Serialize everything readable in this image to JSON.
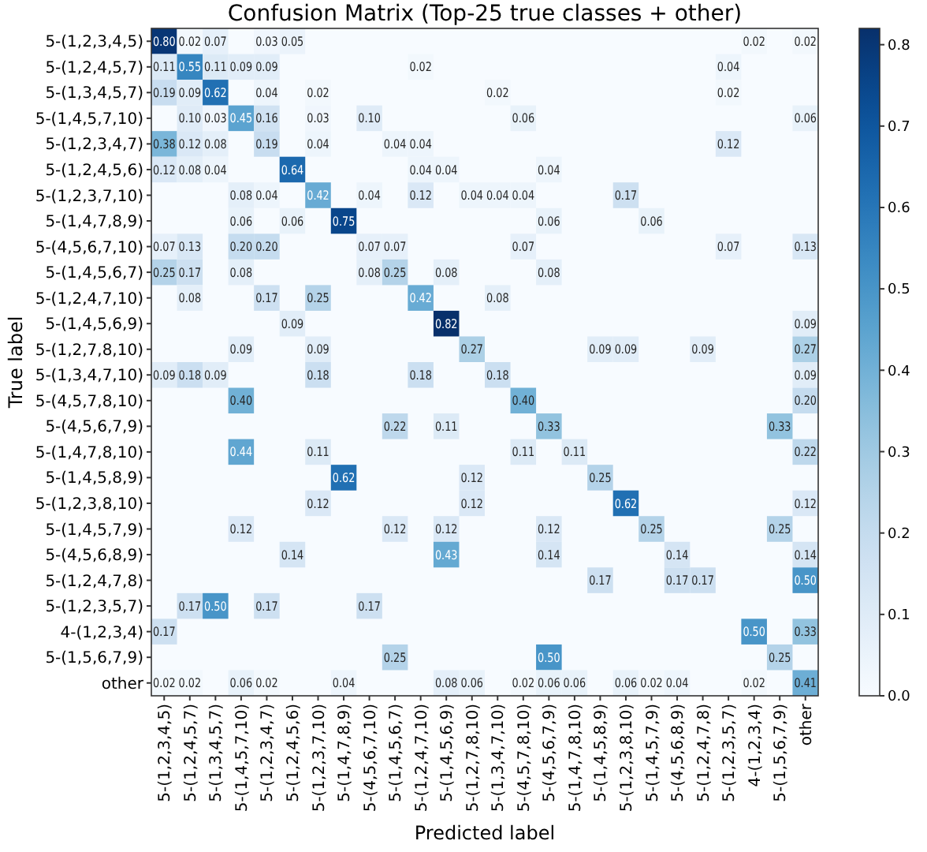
{
  "chart_data": {
    "type": "heatmap",
    "title": "Confusion Matrix (Top-25 true classes + other)",
    "xlabel": "Predicted label",
    "ylabel": "True label",
    "categories": [
      "5-(1,2,3,4,5)",
      "5-(1,2,4,5,7)",
      "5-(1,3,4,5,7)",
      "5-(1,4,5,7,10)",
      "5-(1,2,3,4,7)",
      "5-(1,2,4,5,6)",
      "5-(1,2,3,7,10)",
      "5-(1,4,7,8,9)",
      "5-(4,5,6,7,10)",
      "5-(1,4,5,6,7)",
      "5-(1,2,4,7,10)",
      "5-(1,4,5,6,9)",
      "5-(1,2,7,8,10)",
      "5-(1,3,4,7,10)",
      "5-(4,5,7,8,10)",
      "5-(4,5,6,7,9)",
      "5-(1,4,7,8,10)",
      "5-(1,4,5,8,9)",
      "5-(1,2,3,8,10)",
      "5-(1,4,5,7,9)",
      "5-(4,5,6,8,9)",
      "5-(1,2,4,7,8)",
      "5-(1,2,3,5,7)",
      "4-(1,2,3,4)",
      "5-(1,5,6,7,9)",
      "other"
    ],
    "y_categories": [
      "5-(1,2,3,4,5)",
      "5-(1,2,4,5,7)",
      "5-(1,3,4,5,7)",
      "5-(1,4,5,7,10)",
      "5-(1,2,3,4,7)",
      "5-(1,2,4,5,6)",
      "5-(1,2,3,7,10)",
      "5-(1,4,7,8,9)",
      "5-(4,5,6,7,10)",
      "5-(1,4,5,6,7)",
      "5-(1,2,4,7,10)",
      "5-(1,4,5,6,9)",
      "5-(1,2,7,8,10)",
      "5-(1,3,4,7,10)",
      "5-(4,5,7,8,10)",
      "5-(4,5,6,7,9)",
      "5-(1,4,7,8,10)",
      "5-(1,4,5,8,9)",
      "5-(1,2,3,8,10)",
      "5-(1,4,5,7,9)",
      "5-(4,5,6,8,9)",
      "5-(1,2,4,7,8)",
      "5-(1,2,3,5,7)",
      "4-(1,2,3,4)",
      "5-(1,5,6,7,9)",
      "other"
    ],
    "cells": [
      [
        0.8,
        0.02,
        0.07,
        null,
        0.03,
        0.05,
        null,
        null,
        null,
        null,
        null,
        null,
        null,
        null,
        null,
        null,
        null,
        null,
        null,
        null,
        null,
        null,
        null,
        0.02,
        null,
        0.02
      ],
      [
        0.11,
        0.55,
        0.11,
        0.09,
        0.09,
        null,
        null,
        null,
        null,
        null,
        0.02,
        null,
        null,
        null,
        null,
        null,
        null,
        null,
        null,
        null,
        null,
        null,
        0.04,
        null,
        null,
        null
      ],
      [
        0.19,
        0.09,
        0.62,
        null,
        0.04,
        null,
        0.02,
        null,
        null,
        null,
        null,
        null,
        null,
        0.02,
        null,
        null,
        null,
        null,
        null,
        null,
        null,
        null,
        0.02,
        null,
        null,
        null
      ],
      [
        null,
        0.1,
        0.03,
        0.45,
        0.16,
        null,
        0.03,
        null,
        0.1,
        null,
        null,
        null,
        null,
        null,
        0.06,
        null,
        null,
        null,
        null,
        null,
        null,
        null,
        null,
        null,
        null,
        0.06
      ],
      [
        0.38,
        0.12,
        0.08,
        null,
        0.19,
        null,
        0.04,
        null,
        null,
        0.04,
        0.04,
        null,
        null,
        null,
        null,
        null,
        null,
        null,
        null,
        null,
        null,
        null,
        0.12,
        null,
        null,
        null
      ],
      [
        0.12,
        0.08,
        0.04,
        null,
        null,
        0.64,
        null,
        null,
        null,
        null,
        0.04,
        0.04,
        null,
        null,
        null,
        0.04,
        null,
        null,
        null,
        null,
        null,
        null,
        null,
        null,
        null,
        null
      ],
      [
        null,
        null,
        null,
        0.08,
        0.04,
        null,
        0.42,
        null,
        0.04,
        null,
        0.12,
        null,
        0.04,
        0.04,
        0.04,
        null,
        null,
        null,
        0.17,
        null,
        null,
        null,
        null,
        null,
        null,
        null
      ],
      [
        null,
        null,
        null,
        0.06,
        null,
        0.06,
        null,
        0.75,
        null,
        null,
        null,
        null,
        null,
        null,
        null,
        0.06,
        null,
        null,
        null,
        0.06,
        null,
        null,
        null,
        null,
        null,
        null
      ],
      [
        0.07,
        0.13,
        null,
        0.2,
        0.2,
        null,
        null,
        null,
        0.07,
        0.07,
        null,
        null,
        null,
        null,
        0.07,
        null,
        null,
        null,
        null,
        null,
        null,
        null,
        0.07,
        null,
        null,
        0.13
      ],
      [
        0.25,
        0.17,
        null,
        0.08,
        null,
        null,
        null,
        null,
        0.08,
        0.25,
        null,
        0.08,
        null,
        null,
        null,
        0.08,
        null,
        null,
        null,
        null,
        null,
        null,
        null,
        null,
        null,
        null
      ],
      [
        null,
        0.08,
        null,
        null,
        0.17,
        null,
        0.25,
        null,
        null,
        null,
        0.42,
        null,
        null,
        0.08,
        null,
        null,
        null,
        null,
        null,
        null,
        null,
        null,
        null,
        null,
        null,
        null
      ],
      [
        null,
        null,
        null,
        null,
        null,
        0.09,
        null,
        null,
        null,
        null,
        null,
        0.82,
        null,
        null,
        null,
        null,
        null,
        null,
        null,
        null,
        null,
        null,
        null,
        null,
        null,
        0.09
      ],
      [
        null,
        null,
        null,
        0.09,
        null,
        null,
        0.09,
        null,
        null,
        null,
        null,
        null,
        0.27,
        null,
        null,
        null,
        null,
        0.09,
        0.09,
        null,
        null,
        0.09,
        null,
        null,
        null,
        0.27
      ],
      [
        0.09,
        0.18,
        0.09,
        null,
        null,
        null,
        0.18,
        null,
        null,
        null,
        0.18,
        null,
        null,
        0.18,
        null,
        null,
        null,
        null,
        null,
        null,
        null,
        null,
        null,
        null,
        null,
        0.09
      ],
      [
        null,
        null,
        null,
        0.4,
        null,
        null,
        null,
        null,
        null,
        null,
        null,
        null,
        null,
        null,
        0.4,
        null,
        null,
        null,
        null,
        null,
        null,
        null,
        null,
        null,
        null,
        0.2
      ],
      [
        null,
        null,
        null,
        null,
        null,
        null,
        null,
        null,
        null,
        0.22,
        null,
        0.11,
        null,
        null,
        null,
        0.33,
        null,
        null,
        null,
        null,
        null,
        null,
        null,
        null,
        0.33,
        null
      ],
      [
        null,
        null,
        null,
        0.44,
        null,
        null,
        0.11,
        null,
        null,
        null,
        null,
        null,
        null,
        null,
        0.11,
        null,
        0.11,
        null,
        null,
        null,
        null,
        null,
        null,
        null,
        null,
        0.22
      ],
      [
        null,
        null,
        null,
        null,
        null,
        null,
        null,
        0.62,
        null,
        null,
        null,
        null,
        0.12,
        null,
        null,
        null,
        null,
        0.25,
        null,
        null,
        null,
        null,
        null,
        null,
        null,
        null
      ],
      [
        null,
        null,
        null,
        null,
        null,
        null,
        0.12,
        null,
        null,
        null,
        null,
        null,
        0.12,
        null,
        null,
        null,
        null,
        null,
        0.62,
        null,
        null,
        null,
        null,
        null,
        null,
        0.12
      ],
      [
        null,
        null,
        null,
        0.12,
        null,
        null,
        null,
        null,
        null,
        0.12,
        null,
        0.12,
        null,
        null,
        null,
        0.12,
        null,
        null,
        null,
        0.25,
        null,
        null,
        null,
        null,
        0.25,
        null
      ],
      [
        null,
        null,
        null,
        null,
        null,
        0.14,
        null,
        null,
        null,
        null,
        null,
        0.43,
        null,
        null,
        null,
        0.14,
        null,
        null,
        null,
        null,
        0.14,
        null,
        null,
        null,
        null,
        0.14
      ],
      [
        null,
        null,
        null,
        null,
        null,
        null,
        null,
        null,
        null,
        null,
        null,
        null,
        null,
        null,
        null,
        null,
        null,
        0.17,
        null,
        null,
        0.17,
        0.17,
        null,
        null,
        null,
        0.5
      ],
      [
        null,
        0.17,
        0.5,
        null,
        0.17,
        null,
        null,
        null,
        0.17,
        null,
        null,
        null,
        null,
        null,
        null,
        null,
        null,
        null,
        null,
        null,
        null,
        null,
        null,
        null,
        null,
        null
      ],
      [
        0.17,
        null,
        null,
        null,
        null,
        null,
        null,
        null,
        null,
        null,
        null,
        null,
        null,
        null,
        null,
        null,
        null,
        null,
        null,
        null,
        null,
        null,
        null,
        0.5,
        null,
        0.33
      ],
      [
        null,
        null,
        null,
        null,
        null,
        null,
        null,
        null,
        null,
        0.25,
        null,
        null,
        null,
        null,
        null,
        0.5,
        null,
        null,
        null,
        null,
        null,
        null,
        null,
        null,
        0.25,
        null
      ],
      [
        0.02,
        0.02,
        null,
        0.06,
        0.02,
        null,
        null,
        0.04,
        null,
        null,
        null,
        0.08,
        0.06,
        null,
        0.02,
        0.06,
        0.06,
        null,
        0.06,
        0.02,
        0.04,
        null,
        null,
        0.02,
        null,
        0.41
      ]
    ],
    "cell_labels": [
      [
        "0.80",
        "0.02",
        "0.07",
        null,
        "0.03",
        "0.05",
        null,
        null,
        null,
        null,
        null,
        null,
        null,
        null,
        null,
        null,
        null,
        null,
        null,
        null,
        null,
        null,
        null,
        "0.02",
        null,
        "0.02"
      ],
      [
        "0.11",
        "0.55",
        "0.11",
        "0.09",
        "0.09",
        null,
        null,
        null,
        null,
        null,
        "0.02",
        null,
        null,
        null,
        null,
        null,
        null,
        null,
        null,
        null,
        null,
        null,
        "0.04",
        null,
        null,
        null
      ],
      [
        "0.19",
        "0.09",
        "0.62",
        null,
        "0.04",
        null,
        "0.02",
        null,
        null,
        null,
        null,
        null,
        null,
        "0.02",
        null,
        null,
        null,
        null,
        null,
        null,
        null,
        null,
        "0.02",
        null,
        null,
        null
      ],
      [
        null,
        "0.10",
        "0.03",
        "0.45",
        "0.16",
        null,
        "0.03",
        null,
        "0.10",
        null,
        null,
        null,
        null,
        null,
        "0.06",
        null,
        null,
        null,
        null,
        null,
        null,
        null,
        null,
        null,
        null,
        "0.06"
      ],
      [
        "0.38",
        "0.12",
        "0.08",
        null,
        "0.19",
        null,
        "0.04",
        null,
        null,
        "0.04",
        "0.04",
        null,
        null,
        null,
        null,
        null,
        null,
        null,
        null,
        null,
        null,
        null,
        "0.12",
        null,
        null,
        null
      ],
      [
        "0.12",
        "0.08",
        "0.04",
        null,
        null,
        "0.64",
        null,
        null,
        null,
        null,
        "0.04",
        "0.04",
        null,
        null,
        null,
        "0.04",
        null,
        null,
        null,
        null,
        null,
        null,
        null,
        null,
        null,
        null
      ],
      [
        null,
        null,
        null,
        "0.08",
        "0.04",
        null,
        "0.42",
        null,
        "0.04",
        null,
        "0.12",
        null,
        "0.04",
        "0.04",
        "0.04",
        null,
        null,
        null,
        "0.17",
        null,
        null,
        null,
        null,
        null,
        null,
        null
      ],
      [
        null,
        null,
        null,
        "0.06",
        null,
        "0.06",
        null,
        "0.75",
        null,
        null,
        null,
        null,
        null,
        null,
        null,
        "0.06",
        null,
        null,
        null,
        "0.06",
        null,
        null,
        null,
        null,
        null,
        null
      ],
      [
        "0.07",
        "0.13",
        null,
        "0.20",
        "0.20",
        null,
        null,
        null,
        "0.07",
        "0.07",
        null,
        null,
        null,
        null,
        "0.07",
        null,
        null,
        null,
        null,
        null,
        null,
        null,
        "0.07",
        null,
        null,
        "0.13"
      ],
      [
        "0.25",
        "0.17",
        null,
        "0.08",
        null,
        null,
        null,
        null,
        "0.08",
        "0.25",
        null,
        "0.08",
        null,
        null,
        null,
        "0.08",
        null,
        null,
        null,
        null,
        null,
        null,
        null,
        null,
        null,
        null
      ],
      [
        null,
        "0.08",
        null,
        null,
        "0.17",
        null,
        "0.25",
        null,
        null,
        null,
        "0.42",
        null,
        null,
        "0.08",
        null,
        null,
        null,
        null,
        null,
        null,
        null,
        null,
        null,
        null,
        null,
        null
      ],
      [
        null,
        null,
        null,
        null,
        null,
        "0.09",
        null,
        null,
        null,
        null,
        null,
        "0.82",
        null,
        null,
        null,
        null,
        null,
        null,
        null,
        null,
        null,
        null,
        null,
        null,
        null,
        "0.09"
      ],
      [
        null,
        null,
        null,
        "0.09",
        null,
        null,
        "0.09",
        null,
        null,
        null,
        null,
        null,
        "0.27",
        null,
        null,
        null,
        null,
        "0.09",
        "0.09",
        null,
        null,
        "0.09",
        null,
        null,
        null,
        "0.27"
      ],
      [
        "0.09",
        "0.18",
        "0.09",
        null,
        null,
        null,
        "0.18",
        null,
        null,
        null,
        "0.18",
        null,
        null,
        "0.18",
        null,
        null,
        null,
        null,
        null,
        null,
        null,
        null,
        null,
        null,
        null,
        "0.09"
      ],
      [
        null,
        null,
        null,
        "0.40",
        null,
        null,
        null,
        null,
        null,
        null,
        null,
        null,
        null,
        null,
        "0.40",
        null,
        null,
        null,
        null,
        null,
        null,
        null,
        null,
        null,
        null,
        "0.20"
      ],
      [
        null,
        null,
        null,
        null,
        null,
        null,
        null,
        null,
        null,
        "0.22",
        null,
        "0.11",
        null,
        null,
        null,
        "0.33",
        null,
        null,
        null,
        null,
        null,
        null,
        null,
        null,
        "0.33",
        null
      ],
      [
        null,
        null,
        null,
        "0.44",
        null,
        null,
        "0.11",
        null,
        null,
        null,
        null,
        null,
        null,
        null,
        "0.11",
        null,
        "0.11",
        null,
        null,
        null,
        null,
        null,
        null,
        null,
        null,
        "0.22"
      ],
      [
        null,
        null,
        null,
        null,
        null,
        null,
        null,
        "0.62",
        null,
        null,
        null,
        null,
        "0.12",
        null,
        null,
        null,
        null,
        "0.25",
        null,
        null,
        null,
        null,
        null,
        null,
        null,
        null
      ],
      [
        null,
        null,
        null,
        null,
        null,
        null,
        "0.12",
        null,
        null,
        null,
        null,
        null,
        "0.12",
        null,
        null,
        null,
        null,
        null,
        "0.62",
        null,
        null,
        null,
        null,
        null,
        null,
        "0.12"
      ],
      [
        null,
        null,
        null,
        "0.12",
        null,
        null,
        null,
        null,
        null,
        "0.12",
        null,
        "0.12",
        null,
        null,
        null,
        "0.12",
        null,
        null,
        null,
        "0.25",
        null,
        null,
        null,
        null,
        "0.25",
        null
      ],
      [
        null,
        null,
        null,
        null,
        null,
        "0.14",
        null,
        null,
        null,
        null,
        null,
        "0.43",
        null,
        null,
        null,
        "0.14",
        null,
        null,
        null,
        null,
        "0.14",
        null,
        null,
        null,
        null,
        "0.14"
      ],
      [
        null,
        null,
        null,
        null,
        null,
        null,
        null,
        null,
        null,
        null,
        null,
        null,
        null,
        null,
        null,
        null,
        null,
        "0.17",
        null,
        null,
        "0.17",
        "0.17",
        null,
        null,
        null,
        "0.50"
      ],
      [
        null,
        "0.17",
        "0.50",
        null,
        "0.17",
        null,
        null,
        null,
        "0.17",
        null,
        null,
        null,
        null,
        null,
        null,
        null,
        null,
        null,
        null,
        null,
        null,
        null,
        null,
        null,
        null,
        null
      ],
      [
        "0.17",
        null,
        null,
        null,
        null,
        null,
        null,
        null,
        null,
        null,
        null,
        null,
        null,
        null,
        null,
        null,
        null,
        null,
        null,
        null,
        null,
        null,
        null,
        "0.50",
        null,
        "0.33"
      ],
      [
        null,
        null,
        null,
        null,
        null,
        null,
        null,
        null,
        null,
        "0.25",
        null,
        null,
        null,
        null,
        null,
        "0.50",
        null,
        null,
        null,
        null,
        null,
        null,
        null,
        null,
        "0.25",
        null
      ],
      [
        "0.02",
        "0.02",
        null,
        "0.06",
        "0.02",
        null,
        null,
        "0.04",
        null,
        null,
        null,
        "0.08",
        "0.06",
        null,
        "0.02",
        "0.06",
        "0.06",
        null,
        "0.06",
        "0.02",
        "0.04",
        null,
        null,
        "0.02",
        null,
        "0.41"
      ]
    ],
    "clim": [
      0,
      0.82
    ],
    "cticks": [
      {
        "value": 0,
        "label": "0.0"
      },
      0.1,
      0.2,
      0.3,
      0.4,
      0.5,
      0.6,
      0.7,
      0.8
    ]
  }
}
